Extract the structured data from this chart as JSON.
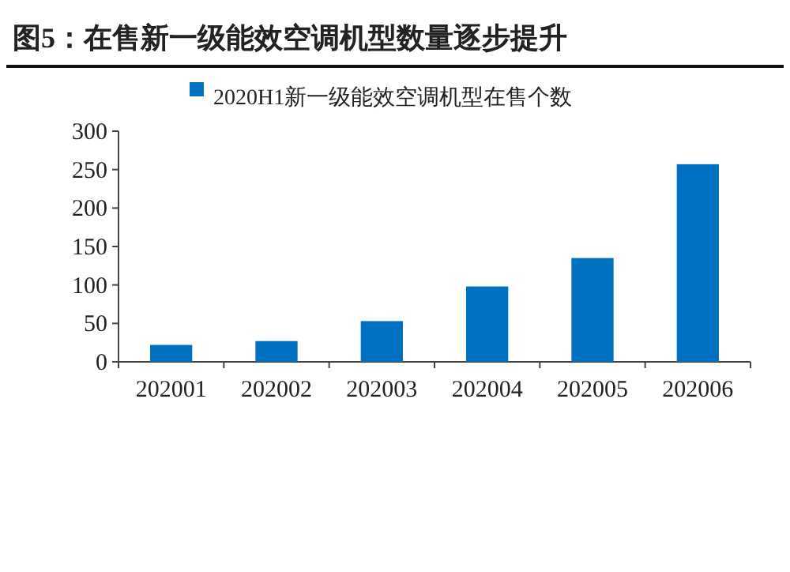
{
  "chart_data": {
    "type": "bar",
    "title": "图5：在售新一级能效空调机型数量逐步提升",
    "categories": [
      "202001",
      "202002",
      "202003",
      "202004",
      "202005",
      "202006"
    ],
    "series": [
      {
        "name": "2020H1新一级能效空调机型在售个数",
        "color": "#0070c0",
        "values": [
          22,
          27,
          53,
          98,
          135,
          257
        ]
      }
    ],
    "ylim": [
      0,
      300
    ],
    "yticks": [
      0,
      50,
      100,
      150,
      200,
      250,
      300
    ],
    "legend": "top",
    "grid": false
  }
}
